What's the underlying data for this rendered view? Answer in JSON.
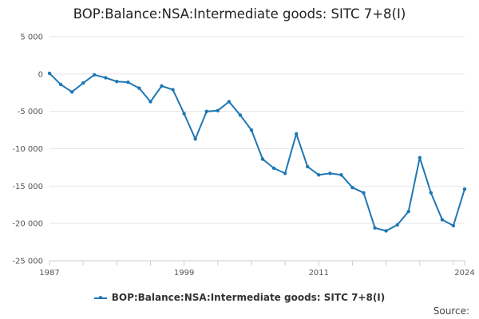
{
  "chart_data": {
    "type": "line",
    "title": "BOP:Balance:NSA:Intermediate goods: SITC 7+8(I)",
    "xlabel": "",
    "ylabel": "",
    "x_ticks": [
      "1987",
      "1999",
      "2011",
      "2024"
    ],
    "y_ticks": [
      "5 000",
      "0",
      "-5 000",
      "-10 000",
      "-15 000",
      "-20 000",
      "-25 000"
    ],
    "y_tick_values": [
      5000,
      0,
      -5000,
      -10000,
      -15000,
      -20000,
      -25000
    ],
    "ylim": [
      -25000,
      5000
    ],
    "xlim": [
      1987,
      2024
    ],
    "grid": true,
    "legend_position": "bottom-center",
    "series": [
      {
        "name": "BOP:Balance:NSA:Intermediate goods: SITC 7+8(I)",
        "color": "#1f77b4",
        "x": [
          1987,
          1988,
          1989,
          1990,
          1991,
          1992,
          1993,
          1994,
          1995,
          1996,
          1997,
          1998,
          1999,
          2000,
          2001,
          2002,
          2003,
          2004,
          2005,
          2006,
          2007,
          2008,
          2009,
          2010,
          2011,
          2012,
          2013,
          2014,
          2015,
          2016,
          2017,
          2018,
          2019,
          2020,
          2021,
          2022,
          2023,
          2024
        ],
        "values": [
          100,
          -1400,
          -2400,
          -1200,
          -100,
          -500,
          -1000,
          -1100,
          -1900,
          -3700,
          -1600,
          -2100,
          -5300,
          -8700,
          -5000,
          -4900,
          -3700,
          -5500,
          -7500,
          -11400,
          -12600,
          -13300,
          -8000,
          -12400,
          -13500,
          -13300,
          -13500,
          -15200,
          -15900,
          -20600,
          -21000,
          -20200,
          -18400,
          -11200,
          -15900,
          -19500,
          -20300,
          -15400
        ]
      }
    ]
  },
  "legend": {
    "label": "BOP:Balance:NSA:Intermediate goods: SITC 7+8(I)"
  },
  "footer": {
    "source_label": "Source:"
  }
}
